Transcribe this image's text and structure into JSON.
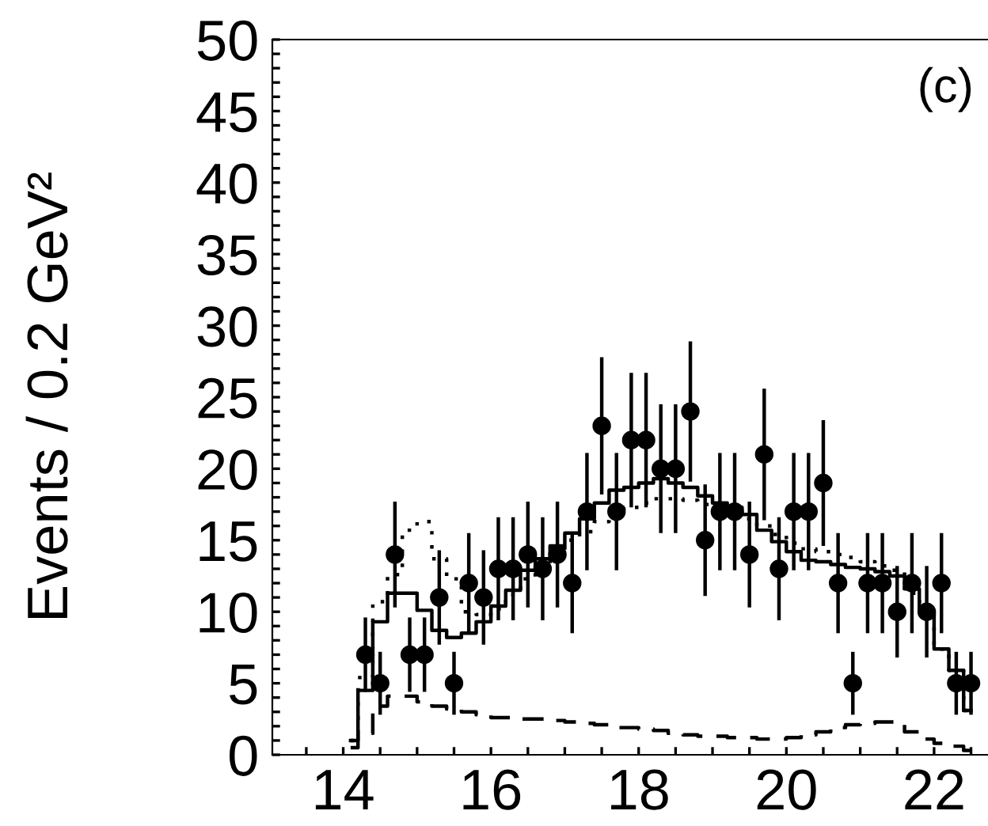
{
  "chart_data": {
    "type": "scatter",
    "ylabel": "Events / 0.2 GeV²",
    "annotations": [
      "(c)"
    ],
    "xlim": [
      13.04,
      22.73
    ],
    "ylim": [
      0,
      50
    ],
    "xticks": [
      {
        "value": 13.5,
        "label": null
      },
      14,
      {
        "value": 14.5,
        "label": null
      },
      {
        "value": 15,
        "label": null
      },
      {
        "value": 15.5,
        "label": null
      },
      16,
      {
        "value": 16.5,
        "label": null
      },
      {
        "value": 17,
        "label": null
      },
      {
        "value": 17.5,
        "label": null
      },
      18,
      {
        "value": 18.5,
        "label": null
      },
      {
        "value": 19,
        "label": null
      },
      {
        "value": 19.5,
        "label": null
      },
      20,
      {
        "value": 20.5,
        "label": null
      },
      {
        "value": 21,
        "label": null
      },
      {
        "value": 21.5,
        "label": null
      },
      22,
      {
        "value": 22.5,
        "label": null
      }
    ],
    "yticks": [
      0,
      {
        "value": 1,
        "label": null
      },
      {
        "value": 2,
        "label": null
      },
      {
        "value": 3,
        "label": null
      },
      {
        "value": 4,
        "label": null
      },
      5,
      {
        "value": 6,
        "label": null
      },
      {
        "value": 7,
        "label": null
      },
      {
        "value": 8,
        "label": null
      },
      {
        "value": 9,
        "label": null
      },
      10,
      {
        "value": 11,
        "label": null
      },
      {
        "value": 12,
        "label": null
      },
      {
        "value": 13,
        "label": null
      },
      {
        "value": 14,
        "label": null
      },
      15,
      {
        "value": 16,
        "label": null
      },
      {
        "value": 17,
        "label": null
      },
      {
        "value": 18,
        "label": null
      },
      {
        "value": 19,
        "label": null
      },
      20,
      {
        "value": 21,
        "label": null
      },
      {
        "value": 22,
        "label": null
      },
      {
        "value": 23,
        "label": null
      },
      {
        "value": 24,
        "label": null
      },
      25,
      {
        "value": 26,
        "label": null
      },
      {
        "value": 27,
        "label": null
      },
      {
        "value": 28,
        "label": null
      },
      {
        "value": 29,
        "label": null
      },
      30,
      {
        "value": 31,
        "label": null
      },
      {
        "value": 32,
        "label": null
      },
      {
        "value": 33,
        "label": null
      },
      {
        "value": 34,
        "label": null
      },
      35,
      {
        "value": 36,
        "label": null
      },
      {
        "value": 37,
        "label": null
      },
      {
        "value": 38,
        "label": null
      },
      {
        "value": 39,
        "label": null
      },
      40,
      {
        "value": 41,
        "label": null
      },
      {
        "value": 42,
        "label": null
      },
      {
        "value": 43,
        "label": null
      },
      {
        "value": 44,
        "label": null
      },
      45,
      {
        "value": 46,
        "label": null
      },
      {
        "value": 47,
        "label": null
      },
      {
        "value": 48,
        "label": null
      },
      {
        "value": 49,
        "label": null
      },
      50
    ],
    "grid": false,
    "legend": false,
    "series": [
      {
        "color": "#000000",
        "marker": "circle",
        "x": [
          14.3,
          14.5,
          14.7,
          14.9,
          15.1,
          15.3,
          15.5,
          15.7,
          15.9,
          16.1,
          16.3,
          16.5,
          16.7,
          16.9,
          17.1,
          17.3,
          17.5,
          17.7,
          17.9,
          18.1,
          18.3,
          18.5,
          18.7,
          18.9,
          19.1,
          19.3,
          19.5,
          19.7,
          19.9,
          20.1,
          20.3,
          20.5,
          20.7,
          20.9,
          21.1,
          21.3,
          21.5,
          21.7,
          21.9,
          22.1,
          22.3,
          22.5
        ],
        "values": [
          7,
          5,
          14,
          7,
          7,
          11,
          5,
          12,
          11,
          13,
          13,
          14,
          13,
          14,
          12,
          17,
          23,
          17,
          22,
          22,
          20,
          20,
          24,
          15,
          17,
          17,
          14,
          21,
          13,
          17,
          17,
          19,
          12,
          5,
          12,
          12,
          10,
          12,
          10,
          12,
          5,
          5
        ],
        "errors": [
          2.6,
          2.2,
          3.7,
          2.6,
          2.6,
          3.3,
          2.2,
          3.5,
          3.3,
          3.6,
          3.6,
          3.7,
          3.6,
          3.7,
          3.5,
          4.1,
          4.8,
          4.1,
          4.7,
          4.7,
          4.5,
          4.5,
          4.9,
          3.9,
          4.1,
          4.1,
          3.7,
          4.6,
          3.6,
          4.1,
          4.1,
          4.4,
          3.5,
          2.2,
          3.5,
          3.5,
          3.2,
          3.5,
          3.2,
          3.5,
          2.2,
          2.2
        ]
      },
      {
        "type": "step",
        "color": "#000000",
        "line_style": "solid",
        "x": [
          14.1,
          14.3,
          14.5,
          14.7,
          14.9,
          15.1,
          15.3,
          15.5,
          15.7,
          15.9,
          16.1,
          16.3,
          16.5,
          16.7,
          16.9,
          17.1,
          17.3,
          17.5,
          17.7,
          17.9,
          18.1,
          18.3,
          18.5,
          18.7,
          18.9,
          19.1,
          19.3,
          19.5,
          19.7,
          19.9,
          20.1,
          20.3,
          20.5,
          20.7,
          20.9,
          21.1,
          21.3,
          21.5,
          21.7,
          21.9,
          22.1,
          22.3,
          22.5
        ],
        "values": [
          1.0,
          4.5,
          9.3,
          11.3,
          11.3,
          10.1,
          8.7,
          8.2,
          8.5,
          9.3,
          10.4,
          11.5,
          12.9,
          13.7,
          14.6,
          15.5,
          16.5,
          17.6,
          18.5,
          18.7,
          19.0,
          19.3,
          19.0,
          18.7,
          18.1,
          17.6,
          17.3,
          16.8,
          15.7,
          14.9,
          14.2,
          13.6,
          13.5,
          13.3,
          13.1,
          13.0,
          12.8,
          12.5,
          11.6,
          10.1,
          7.4,
          5.9,
          3.1
        ]
      },
      {
        "type": "step",
        "color": "#000000",
        "line_style": "dotted",
        "x": [
          14.1,
          14.3,
          14.5,
          14.7,
          14.9,
          15.1,
          15.3,
          15.5,
          15.7,
          15.9,
          16.1,
          16.3,
          16.5,
          16.7,
          16.9,
          17.1,
          17.3,
          17.5,
          17.7,
          17.9,
          18.1,
          18.3,
          18.5,
          18.7,
          18.9,
          19.1,
          19.3,
          19.5,
          19.7,
          19.9,
          20.1,
          20.3,
          20.5,
          20.7,
          20.9,
          21.1,
          21.3,
          21.5,
          21.7,
          21.9,
          22.1,
          22.3,
          22.5
        ],
        "values": [
          1.0,
          5.4,
          10.7,
          12.6,
          15.7,
          16.3,
          13.7,
          12.3,
          10.0,
          9.8,
          10.2,
          11.2,
          12.3,
          13.2,
          14.2,
          15.0,
          15.6,
          16.3,
          16.8,
          17.3,
          17.6,
          17.9,
          17.9,
          17.8,
          17.5,
          17.2,
          16.9,
          16.5,
          16.0,
          15.4,
          14.8,
          14.4,
          14.2,
          14.0,
          13.8,
          13.5,
          13.2,
          12.9,
          11.3,
          10.1,
          7.4,
          5.9,
          3.1
        ]
      },
      {
        "type": "step",
        "color": "#000000",
        "line_style": "dashed",
        "x": [
          14.1,
          14.3,
          14.5,
          14.7,
          14.9,
          15.1,
          15.3,
          15.5,
          15.7,
          15.9,
          16.1,
          16.3,
          16.5,
          16.7,
          16.9,
          17.1,
          17.3,
          17.5,
          17.7,
          17.9,
          18.1,
          18.3,
          18.5,
          18.7,
          18.9,
          19.1,
          19.3,
          19.5,
          19.7,
          19.9,
          20.1,
          20.3,
          20.5,
          20.7,
          20.9,
          21.1,
          21.3,
          21.5,
          21.7,
          21.9,
          22.1,
          22.3,
          22.5
        ],
        "values": [
          0.5,
          1.5,
          3.4,
          4.1,
          4.1,
          3.7,
          3.4,
          3.2,
          3.0,
          2.8,
          2.6,
          2.6,
          2.5,
          2.5,
          2.4,
          2.3,
          2.2,
          2.1,
          1.9,
          1.9,
          1.8,
          1.7,
          1.5,
          1.4,
          1.3,
          1.3,
          1.2,
          1.2,
          1.1,
          1.1,
          1.2,
          1.4,
          1.6,
          1.9,
          2.1,
          2.2,
          2.3,
          2.3,
          1.6,
          1.1,
          0.8,
          0.6,
          0.3
        ]
      }
    ]
  }
}
